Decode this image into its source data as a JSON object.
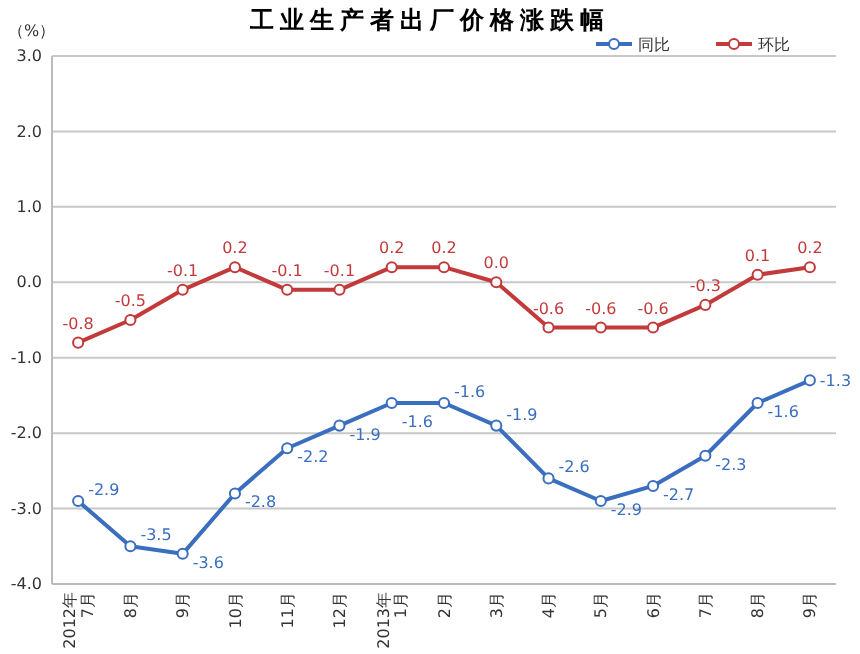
{
  "chart_data": {
    "type": "line",
    "title": "工业生产者出厂价格涨跌幅",
    "ylabel": "（%）",
    "categories": [
      "2012年7月",
      "8月",
      "9月",
      "10月",
      "11月",
      "12月",
      "2013年1月",
      "2月",
      "3月",
      "4月",
      "5月",
      "6月",
      "7月",
      "8月",
      "9月"
    ],
    "series": [
      {
        "name": "同比",
        "color": "#3a6ebf",
        "values": [
          -2.9,
          -3.5,
          -3.6,
          -2.8,
          -2.2,
          -1.9,
          -1.6,
          -1.6,
          -1.9,
          -2.6,
          -2.9,
          -2.7,
          -2.3,
          -1.6,
          -1.3
        ],
        "value_labels": [
          "-2.9",
          "-3.5",
          "-3.6",
          "-2.8",
          "-2.2",
          "-1.9",
          "-1.6",
          "-1.6",
          "-1.9",
          "-2.6",
          "-2.9",
          "-2.7",
          "-2.3",
          "-1.6",
          "-1.3"
        ]
      },
      {
        "name": "环比",
        "color": "#c23a3a",
        "values": [
          -0.8,
          -0.5,
          -0.1,
          0.2,
          -0.1,
          -0.1,
          0.2,
          0.2,
          0.0,
          -0.6,
          -0.6,
          -0.6,
          -0.3,
          0.1,
          0.2
        ],
        "value_labels": [
          "-0.8",
          "-0.5",
          "-0.1",
          "0.2",
          "-0.1",
          "-0.1",
          "0.2",
          "0.2",
          "0.0",
          "-0.6",
          "-0.6",
          "-0.6",
          "-0.3",
          "0.1",
          "0.2"
        ]
      }
    ],
    "ylim": [
      -4,
      3
    ],
    "yticks": [
      {
        "value": 3,
        "label": "3.0"
      },
      {
        "value": 2,
        "label": "2.0"
      },
      {
        "value": 1,
        "label": "1.0"
      },
      {
        "value": 0,
        "label": "0.0"
      },
      {
        "value": -1,
        "label": "-1.0"
      },
      {
        "value": -2,
        "label": "-2.0"
      },
      {
        "value": -3,
        "label": "-3.0"
      },
      {
        "value": -4,
        "label": "-4.0"
      }
    ],
    "grid": "y",
    "legend": "top right",
    "marker": "circle",
    "line_style": "solid"
  }
}
